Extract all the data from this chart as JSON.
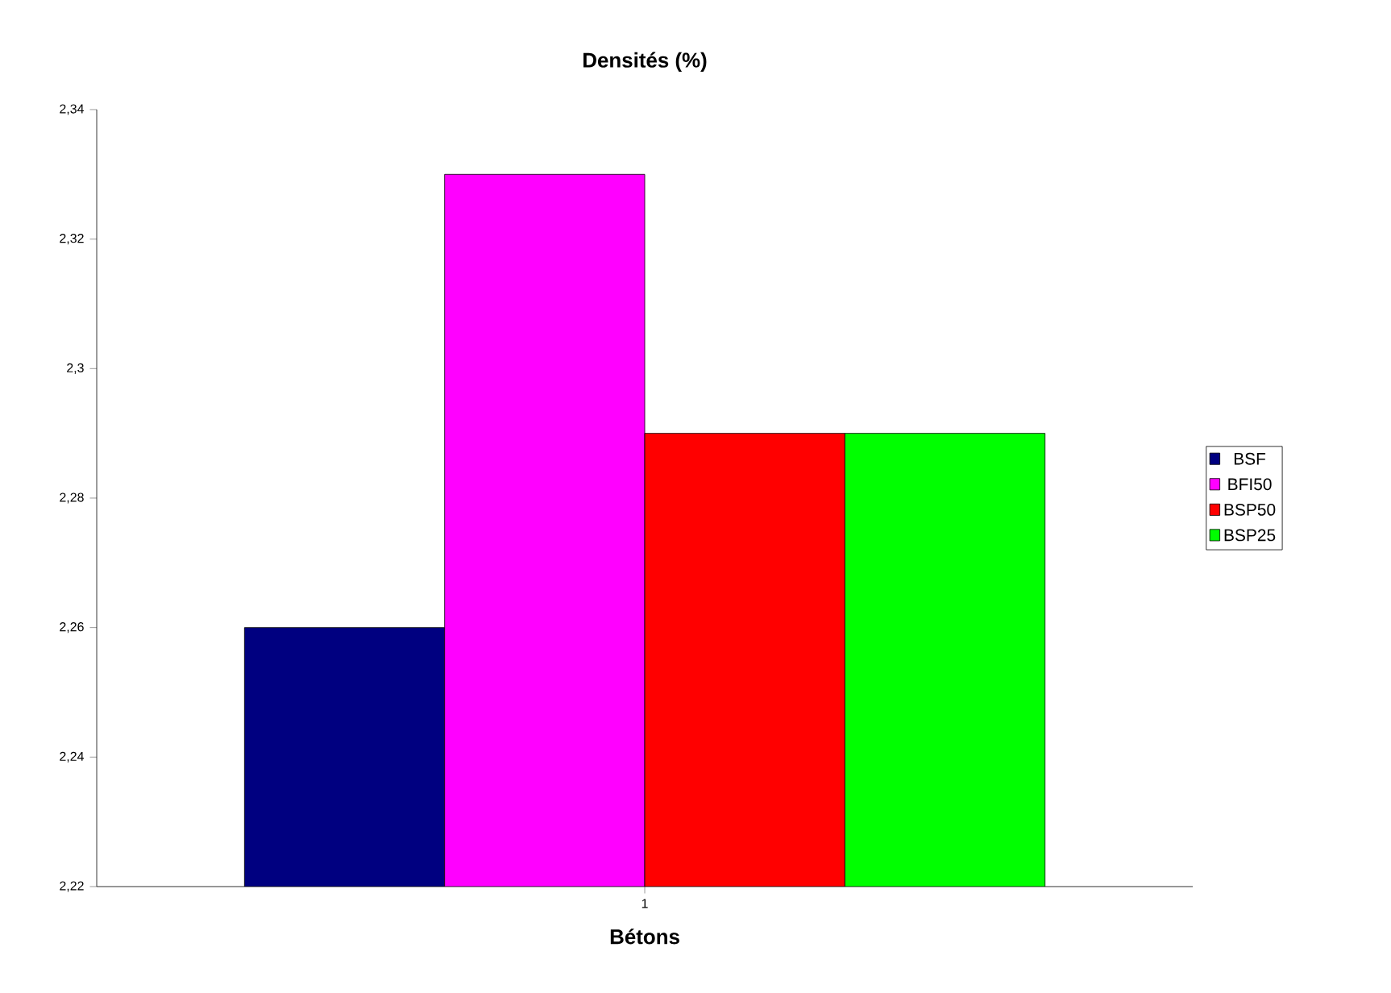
{
  "chart_data": {
    "type": "bar",
    "title": "Densités (%)",
    "xlabel": "Bétons",
    "categories": [
      "1"
    ],
    "series": [
      {
        "name": "BSF",
        "color": "#000080",
        "values": [
          2.26
        ]
      },
      {
        "name": "BFI50",
        "color": "#ff00ff",
        "values": [
          2.33
        ]
      },
      {
        "name": "BSP50",
        "color": "#ff0000",
        "values": [
          2.29
        ]
      },
      {
        "name": "BSP25",
        "color": "#00ff00",
        "values": [
          2.29
        ]
      }
    ],
    "ylim": [
      2.22,
      2.34
    ],
    "yticks": [
      {
        "value": 2.22,
        "label": "2,22"
      },
      {
        "value": 2.24,
        "label": "2,24"
      },
      {
        "value": 2.26,
        "label": "2,26"
      },
      {
        "value": 2.28,
        "label": "2,28"
      },
      {
        "value": 2.3,
        "label": "2,3"
      },
      {
        "value": 2.32,
        "label": "2,32"
      },
      {
        "value": 2.34,
        "label": "2,34"
      }
    ],
    "legend": "right"
  }
}
